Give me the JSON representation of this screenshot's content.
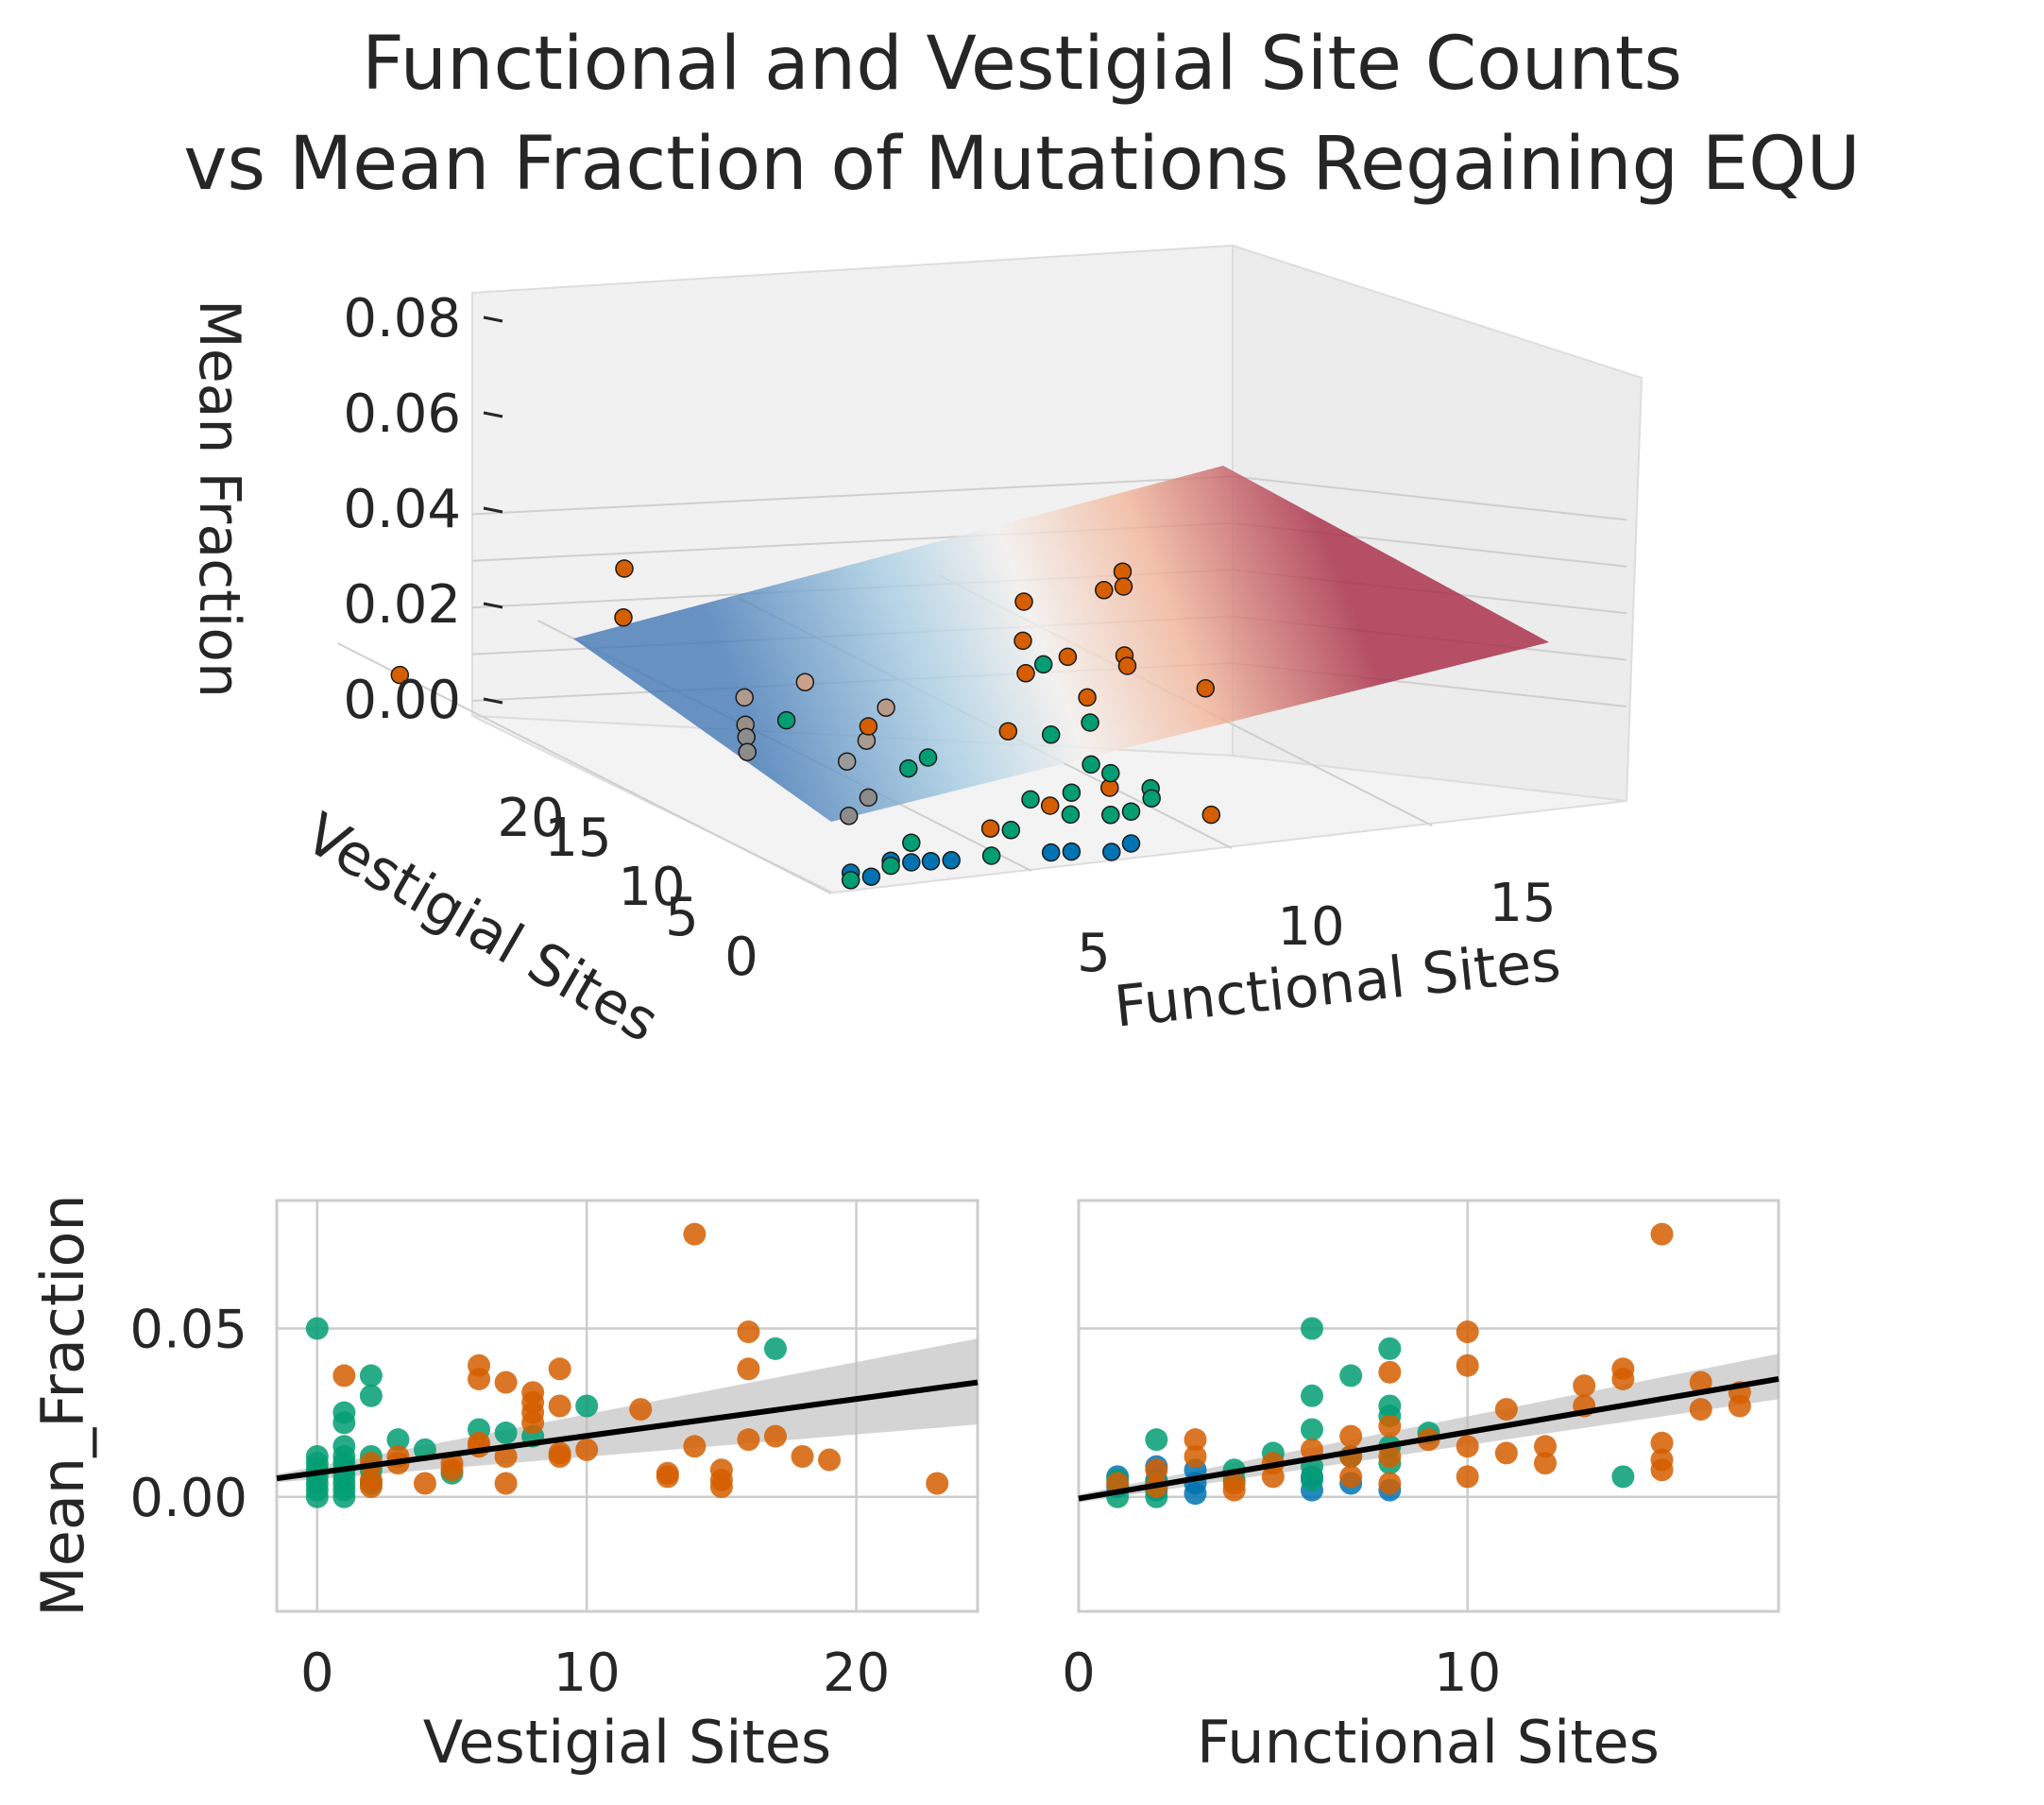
{
  "figure": {
    "title_line1": "Functional and Vestigial Site Counts",
    "title_line2": "vs Mean Fraction of Mutations Regaining EQU"
  },
  "chart_data": [
    {
      "type": "scatter3d",
      "zlabel": "Mean Fraction",
      "ylabel": "Vestigial Sites",
      "xlabel": "Functional Sites",
      "ztick_labels": [
        "0.00",
        "0.02",
        "0.04",
        "0.06",
        "0.08"
      ],
      "ytick_labels": [
        "0",
        "5",
        "10",
        "15",
        "20"
      ],
      "xtick_labels": [
        "5",
        "10",
        "15"
      ],
      "surface": "fitted plane, blue (low) to red (high)",
      "colors": {
        "blue": "#0173b2",
        "green": "#029e73",
        "orange": "#d55e00"
      }
    },
    {
      "type": "scatter",
      "xlabel": "Vestigial Sites",
      "ylabel": "Mean_Fraction",
      "xlim": [
        -1.5,
        24.5
      ],
      "ylim": [
        -0.034,
        0.088
      ],
      "xtick_labels": [
        "0",
        "10",
        "20"
      ],
      "ytick_labels": [
        "0.00",
        "0.05"
      ],
      "regression": {
        "y_at_xmin": 0.0055,
        "y_at_xmax": 0.034,
        "ci_low_end": [
          0.0055,
          0.0215
        ],
        "ci_high_end": [
          0.006,
          0.047
        ]
      },
      "series": [
        {
          "color": "#029e73",
          "points": [
            [
              0,
              0.05
            ],
            [
              0,
              0.012
            ],
            [
              0,
              0.01
            ],
            [
              0,
              0.008
            ],
            [
              0,
              0.006
            ],
            [
              0,
              0.004
            ],
            [
              0,
              0.002
            ],
            [
              0,
              0.0
            ],
            [
              1,
              0.025
            ],
            [
              1,
              0.022
            ],
            [
              1,
              0.015
            ],
            [
              1,
              0.012
            ],
            [
              1,
              0.01
            ],
            [
              1,
              0.008
            ],
            [
              1,
              0.006
            ],
            [
              1,
              0.004
            ],
            [
              1,
              0.002
            ],
            [
              1,
              0.0
            ],
            [
              2,
              0.036
            ],
            [
              2,
              0.03
            ],
            [
              2,
              0.012
            ],
            [
              2,
              0.008
            ],
            [
              2,
              0.004
            ],
            [
              3,
              0.017
            ],
            [
              4,
              0.014
            ],
            [
              5,
              0.007
            ],
            [
              6,
              0.02
            ],
            [
              7,
              0.019
            ],
            [
              8,
              0.018
            ],
            [
              10,
              0.027
            ],
            [
              17,
              0.044
            ]
          ]
        },
        {
          "color": "#d55e00",
          "points": [
            [
              1,
              0.036
            ],
            [
              2,
              0.01
            ],
            [
              2,
              0.005
            ],
            [
              2,
              0.003
            ],
            [
              3,
              0.012
            ],
            [
              3,
              0.01
            ],
            [
              4,
              0.004
            ],
            [
              5,
              0.01
            ],
            [
              5,
              0.008
            ],
            [
              6,
              0.039
            ],
            [
              6,
              0.035
            ],
            [
              6,
              0.016
            ],
            [
              6,
              0.015
            ],
            [
              7,
              0.034
            ],
            [
              7,
              0.012
            ],
            [
              7,
              0.004
            ],
            [
              8,
              0.031
            ],
            [
              8,
              0.028
            ],
            [
              8,
              0.025
            ],
            [
              8,
              0.022
            ],
            [
              9,
              0.038
            ],
            [
              9,
              0.027
            ],
            [
              9,
              0.013
            ],
            [
              9,
              0.012
            ],
            [
              10,
              0.014
            ],
            [
              12,
              0.026
            ],
            [
              13,
              0.007
            ],
            [
              13,
              0.006
            ],
            [
              14,
              0.078
            ],
            [
              14,
              0.015
            ],
            [
              15,
              0.008
            ],
            [
              15,
              0.005
            ],
            [
              15,
              0.003
            ],
            [
              16,
              0.049
            ],
            [
              16,
              0.038
            ],
            [
              16,
              0.017
            ],
            [
              17,
              0.018
            ],
            [
              18,
              0.012
            ],
            [
              19,
              0.011
            ],
            [
              23,
              0.004
            ]
          ]
        }
      ]
    },
    {
      "type": "scatter",
      "xlabel": "Functional Sites",
      "xlim": [
        0,
        18
      ],
      "ylim": [
        -0.034,
        0.088
      ],
      "xtick_labels": [
        "0",
        "10"
      ],
      "regression": {
        "y_at_xmin": -0.0005,
        "y_at_xmax": 0.035,
        "ci_low_end": [
          0.0,
          0.029
        ],
        "ci_high_end": [
          0.0,
          0.0425
        ]
      },
      "series": [
        {
          "color": "#0173b2",
          "points": [
            [
              1,
              0.006
            ],
            [
              1,
              0.003
            ],
            [
              2,
              0.009
            ],
            [
              2,
              0.005
            ],
            [
              2,
              0.002
            ],
            [
              3,
              0.008
            ],
            [
              3,
              0.004
            ],
            [
              3,
              0.001
            ],
            [
              6,
              0.006
            ],
            [
              6,
              0.002
            ],
            [
              7,
              0.004
            ],
            [
              8,
              0.002
            ]
          ]
        },
        {
          "color": "#029e73",
          "points": [
            [
              1,
              0.005
            ],
            [
              1,
              0.0
            ],
            [
              2,
              0.017
            ],
            [
              2,
              0.004
            ],
            [
              2,
              0.0
            ],
            [
              4,
              0.008
            ],
            [
              4,
              0.005
            ],
            [
              5,
              0.013
            ],
            [
              6,
              0.05
            ],
            [
              6,
              0.03
            ],
            [
              6,
              0.02
            ],
            [
              6,
              0.009
            ],
            [
              6,
              0.005
            ],
            [
              7,
              0.036
            ],
            [
              7,
              0.012
            ],
            [
              8,
              0.044
            ],
            [
              8,
              0.027
            ],
            [
              8,
              0.024
            ],
            [
              8,
              0.015
            ],
            [
              8,
              0.01
            ],
            [
              9,
              0.019
            ],
            [
              14,
              0.006
            ]
          ]
        },
        {
          "color": "#d55e00",
          "points": [
            [
              1,
              0.004
            ],
            [
              2,
              0.008
            ],
            [
              2,
              0.003
            ],
            [
              3,
              0.017
            ],
            [
              3,
              0.012
            ],
            [
              4,
              0.004
            ],
            [
              4,
              0.002
            ],
            [
              5,
              0.01
            ],
            [
              5,
              0.006
            ],
            [
              6,
              0.014
            ],
            [
              7,
              0.018
            ],
            [
              7,
              0.012
            ],
            [
              7,
              0.006
            ],
            [
              8,
              0.037
            ],
            [
              8,
              0.021
            ],
            [
              8,
              0.012
            ],
            [
              8,
              0.004
            ],
            [
              9,
              0.017
            ],
            [
              10,
              0.049
            ],
            [
              10,
              0.039
            ],
            [
              10,
              0.015
            ],
            [
              10,
              0.006
            ],
            [
              11,
              0.026
            ],
            [
              11,
              0.013
            ],
            [
              12,
              0.015
            ],
            [
              12,
              0.01
            ],
            [
              13,
              0.033
            ],
            [
              13,
              0.027
            ],
            [
              14,
              0.038
            ],
            [
              14,
              0.035
            ],
            [
              15,
              0.078
            ],
            [
              15,
              0.016
            ],
            [
              15,
              0.011
            ],
            [
              15,
              0.008
            ],
            [
              16,
              0.034
            ],
            [
              16,
              0.026
            ],
            [
              17,
              0.031
            ],
            [
              17,
              0.027
            ]
          ]
        }
      ]
    }
  ]
}
